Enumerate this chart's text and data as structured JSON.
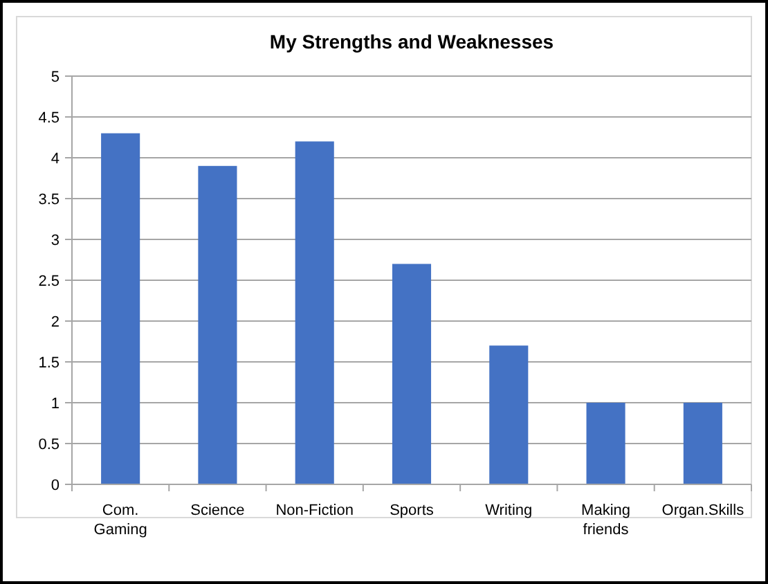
{
  "chart_data": {
    "type": "bar",
    "title": "My Strengths and Weaknesses",
    "categories": [
      "Com. Gaming",
      "Science",
      "Non-Fiction",
      "Sports",
      "Writing",
      "Making friends",
      "Organ.Skills"
    ],
    "values": [
      4.3,
      3.9,
      4.2,
      2.7,
      1.7,
      1,
      1
    ],
    "color": "#4472c4",
    "ylim": [
      0,
      5
    ],
    "yticks": [
      0,
      0.5,
      1,
      1.5,
      2,
      2.5,
      3,
      3.5,
      4,
      4.5,
      5
    ],
    "grid": "y"
  }
}
